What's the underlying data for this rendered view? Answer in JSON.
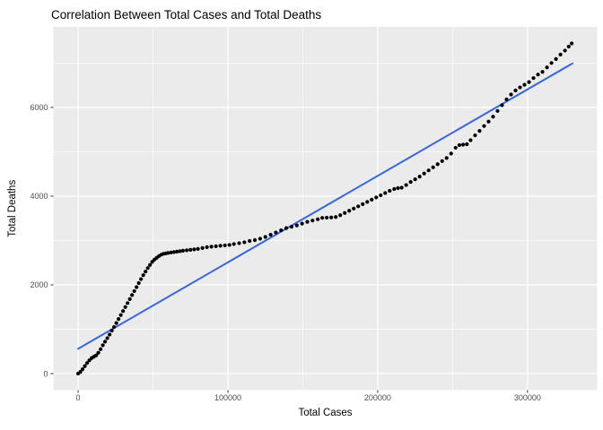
{
  "title": "Correlation Between Total Cases and Total Deaths",
  "chart_data": {
    "type": "scatter",
    "title": "Correlation Between Total Cases and Total Deaths",
    "xlabel": "Total Cases",
    "ylabel": "Total Deaths",
    "x_ticks": [
      0,
      100000,
      200000,
      300000
    ],
    "y_ticks": [
      0,
      2000,
      4000,
      6000
    ],
    "x_minor_ticks": [
      50000,
      150000,
      250000
    ],
    "y_minor_ticks": [
      1000,
      3000,
      5000,
      7000
    ],
    "xlim": [
      -16500,
      346500
    ],
    "ylim": [
      -372,
      7814
    ],
    "grid": "on",
    "legend": "none",
    "colors": {
      "panel_background": "#EBEBEB",
      "grid": "#FFFFFF",
      "points": "#000000",
      "trend_line": "#3564E5",
      "tick_text": "#4D4D4D",
      "tick_mark": "#333333"
    },
    "trend_line": {
      "x": [
        0,
        330000
      ],
      "y": [
        560,
        6990
      ]
    },
    "points": [
      [
        0,
        0
      ],
      [
        1500,
        40
      ],
      [
        3000,
        100
      ],
      [
        4500,
        170
      ],
      [
        6000,
        240
      ],
      [
        7500,
        300
      ],
      [
        9000,
        350
      ],
      [
        10500,
        380
      ],
      [
        12000,
        410
      ],
      [
        13500,
        470
      ],
      [
        15000,
        550
      ],
      [
        16500,
        640
      ],
      [
        18000,
        720
      ],
      [
        19500,
        800
      ],
      [
        21000,
        880
      ],
      [
        22500,
        970
      ],
      [
        24000,
        1050
      ],
      [
        25500,
        1140
      ],
      [
        27000,
        1230
      ],
      [
        28500,
        1320
      ],
      [
        30000,
        1410
      ],
      [
        31500,
        1500
      ],
      [
        33000,
        1590
      ],
      [
        34500,
        1680
      ],
      [
        36000,
        1770
      ],
      [
        37500,
        1860
      ],
      [
        39000,
        1950
      ],
      [
        40500,
        2040
      ],
      [
        42000,
        2130
      ],
      [
        43500,
        2220
      ],
      [
        45000,
        2300
      ],
      [
        46500,
        2380
      ],
      [
        48000,
        2450
      ],
      [
        49500,
        2520
      ],
      [
        51000,
        2570
      ],
      [
        52500,
        2610
      ],
      [
        54000,
        2650
      ],
      [
        55500,
        2680
      ],
      [
        57000,
        2700
      ],
      [
        58500,
        2710
      ],
      [
        60000,
        2720
      ],
      [
        62000,
        2730
      ],
      [
        64000,
        2740
      ],
      [
        66000,
        2750
      ],
      [
        68000,
        2760
      ],
      [
        70000,
        2770
      ],
      [
        72500,
        2780
      ],
      [
        75000,
        2790
      ],
      [
        77500,
        2800
      ],
      [
        80000,
        2810
      ],
      [
        83000,
        2830
      ],
      [
        86000,
        2850
      ],
      [
        89000,
        2860
      ],
      [
        92000,
        2870
      ],
      [
        95000,
        2880
      ],
      [
        98000,
        2890
      ],
      [
        101000,
        2900
      ],
      [
        104000,
        2920
      ],
      [
        107500,
        2940
      ],
      [
        111000,
        2960
      ],
      [
        114500,
        2990
      ],
      [
        118000,
        3010
      ],
      [
        121500,
        3040
      ],
      [
        125000,
        3080
      ],
      [
        128500,
        3130
      ],
      [
        132000,
        3180
      ],
      [
        135500,
        3230
      ],
      [
        139000,
        3280
      ],
      [
        142500,
        3310
      ],
      [
        146000,
        3340
      ],
      [
        149500,
        3380
      ],
      [
        153000,
        3420
      ],
      [
        156500,
        3450
      ],
      [
        160000,
        3480
      ],
      [
        163000,
        3510
      ],
      [
        166000,
        3515
      ],
      [
        169000,
        3520
      ],
      [
        172000,
        3530
      ],
      [
        175000,
        3570
      ],
      [
        178000,
        3620
      ],
      [
        181000,
        3670
      ],
      [
        184000,
        3720
      ],
      [
        187000,
        3770
      ],
      [
        190000,
        3820
      ],
      [
        193000,
        3870
      ],
      [
        196000,
        3920
      ],
      [
        199000,
        3970
      ],
      [
        202000,
        4020
      ],
      [
        205000,
        4070
      ],
      [
        208000,
        4120
      ],
      [
        211000,
        4160
      ],
      [
        213500,
        4180
      ],
      [
        216000,
        4190
      ],
      [
        219000,
        4250
      ],
      [
        222000,
        4320
      ],
      [
        225000,
        4380
      ],
      [
        228000,
        4440
      ],
      [
        231000,
        4510
      ],
      [
        234000,
        4580
      ],
      [
        237000,
        4650
      ],
      [
        240000,
        4720
      ],
      [
        243000,
        4790
      ],
      [
        246000,
        4860
      ],
      [
        249000,
        4960
      ],
      [
        252000,
        5090
      ],
      [
        254500,
        5150
      ],
      [
        257000,
        5160
      ],
      [
        259500,
        5170
      ],
      [
        262000,
        5260
      ],
      [
        265000,
        5370
      ],
      [
        268000,
        5470
      ],
      [
        271000,
        5580
      ],
      [
        274000,
        5680
      ],
      [
        277000,
        5790
      ],
      [
        280000,
        5920
      ],
      [
        283000,
        6050
      ],
      [
        286000,
        6180
      ],
      [
        289000,
        6290
      ],
      [
        292000,
        6380
      ],
      [
        295000,
        6450
      ],
      [
        298000,
        6510
      ],
      [
        301000,
        6570
      ],
      [
        304000,
        6660
      ],
      [
        307000,
        6740
      ],
      [
        310000,
        6800
      ],
      [
        313000,
        6900
      ],
      [
        316000,
        7000
      ],
      [
        319000,
        7090
      ],
      [
        322000,
        7190
      ],
      [
        325000,
        7280
      ],
      [
        327500,
        7370
      ],
      [
        329500,
        7440
      ]
    ]
  }
}
